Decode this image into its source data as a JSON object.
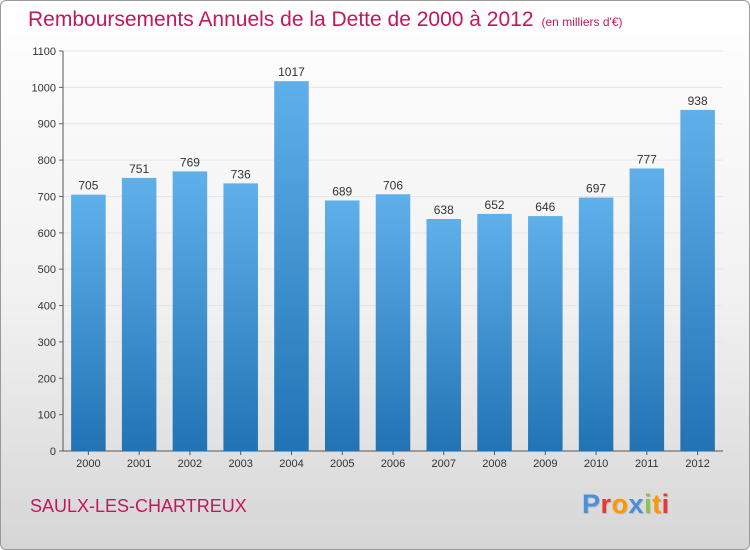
{
  "colors": {
    "title": "#c2185b",
    "bar_top": "#5fb0ea",
    "bar_bottom": "#2273b4",
    "grid": "#e6e6e6",
    "logo_letters": [
      "#4a90d9",
      "#e53935",
      "#ff9800",
      "#4a90d9",
      "#8bc34a",
      "#ff9800",
      "#e53935"
    ]
  },
  "header": {
    "title": "Remboursements Annuels de la Dette de 2000 à 2012",
    "unit": "(en milliers d'€)"
  },
  "footer": {
    "city": "SAULX-LES-CHARTREUX",
    "logo_text": "Proxiti",
    "logo_icon": "proxiti-logo"
  },
  "chart_data": {
    "type": "bar",
    "title": "Remboursements Annuels de la Dette de 2000 à 2012",
    "subtitle": "(en milliers d'€)",
    "categories": [
      "2000",
      "2001",
      "2002",
      "2003",
      "2004",
      "2005",
      "2006",
      "2007",
      "2008",
      "2009",
      "2010",
      "2011",
      "2012"
    ],
    "values": [
      705,
      751,
      769,
      736,
      1017,
      689,
      706,
      638,
      652,
      646,
      697,
      777,
      938
    ],
    "ylim": [
      0,
      1100
    ],
    "yticks": [
      0,
      100,
      200,
      300,
      400,
      500,
      600,
      700,
      800,
      900,
      1000,
      1100
    ],
    "grid": true,
    "data_labels": true,
    "legend": "none"
  }
}
